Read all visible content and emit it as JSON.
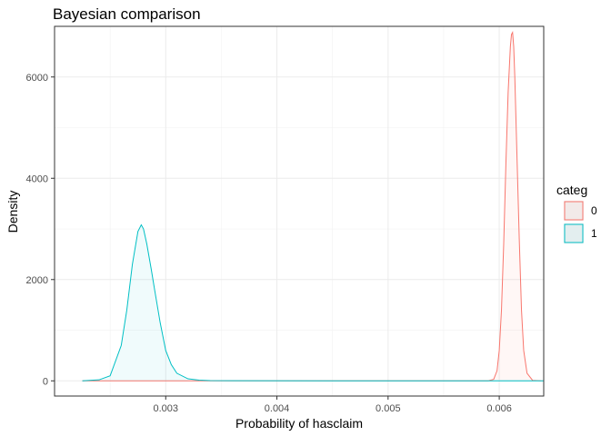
{
  "chart_data": {
    "type": "area",
    "title": "Bayesian comparison",
    "xlabel": "Probability of hasclaim",
    "ylabel": "Density",
    "xlim": [
      0.002,
      0.0064
    ],
    "ylim": [
      -300,
      7000
    ],
    "x_ticks": [
      0.003,
      0.004,
      0.005,
      0.006
    ],
    "x_tick_labels": [
      "0.003",
      "0.004",
      "0.005",
      "0.006"
    ],
    "y_ticks": [
      0,
      2000,
      4000,
      6000
    ],
    "y_tick_labels": [
      "0",
      "2000",
      "4000",
      "6000"
    ],
    "grid": true,
    "legend": {
      "title": "categ",
      "position": "right"
    },
    "series": [
      {
        "name": "0",
        "color": "#F8766D",
        "fill": "#F8766D",
        "x": [
          0.00225,
          0.0059,
          0.00595,
          0.00598,
          0.006,
          0.00602,
          0.00604,
          0.00606,
          0.00608,
          0.0061,
          0.00611,
          0.00612,
          0.00613,
          0.00614,
          0.00616,
          0.00618,
          0.0062,
          0.00622,
          0.00625,
          0.0063,
          0.00638
        ],
        "values": [
          0,
          0,
          30,
          200,
          600,
          1400,
          2700,
          4300,
          5700,
          6600,
          6840,
          6880,
          6600,
          6000,
          4400,
          2800,
          1400,
          600,
          150,
          10,
          0
        ]
      },
      {
        "name": "1",
        "color": "#00BFC4",
        "fill": "#00BFC4",
        "x": [
          0.00225,
          0.0024,
          0.0025,
          0.0026,
          0.00265,
          0.0027,
          0.00275,
          0.00278,
          0.0028,
          0.00283,
          0.00287,
          0.0029,
          0.00295,
          0.003,
          0.00305,
          0.0031,
          0.0032,
          0.0033,
          0.0034,
          0.0036,
          0.0045,
          0.0064
        ],
        "values": [
          0,
          20,
          100,
          700,
          1400,
          2300,
          2950,
          3080,
          3000,
          2700,
          2200,
          1800,
          1150,
          600,
          320,
          150,
          40,
          15,
          5,
          2,
          0,
          0
        ]
      }
    ]
  }
}
